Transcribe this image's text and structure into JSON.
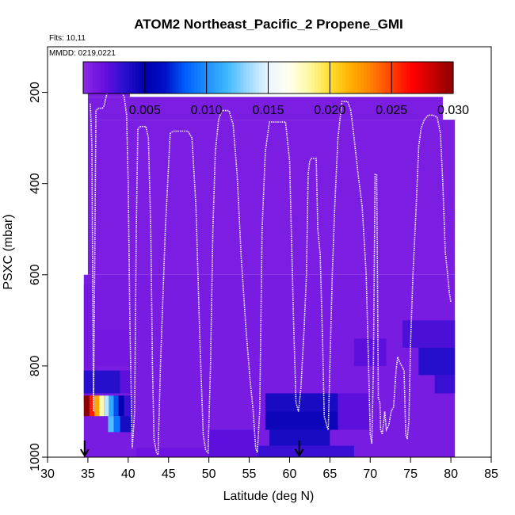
{
  "chart_data": {
    "type": "heatmap",
    "title": "ATOM2 Northeast_Pacific_2 Propene_GMI",
    "flights_label": "Flts: 10,11",
    "dates_label": "MMDD: 0219,0221",
    "xlabel": "Latitude (deg N)",
    "ylabel": "PSXC (mbar)",
    "xlim": [
      30,
      85
    ],
    "ylim": [
      1000,
      100
    ],
    "x_ticks": [
      "30",
      "35",
      "40",
      "45",
      "50",
      "55",
      "60",
      "65",
      "70",
      "75",
      "80",
      "85"
    ],
    "y_ticks": [
      "200",
      "400",
      "600",
      "800",
      "1000"
    ],
    "colorbar": {
      "range": [
        0.0,
        0.03
      ],
      "tick_labels": [
        "0.005",
        "0.010",
        "0.015",
        "0.020",
        "0.025",
        "0.030"
      ],
      "colors": [
        "#8a2be2",
        "#6a0fe0",
        "#2a10d0",
        "#0000b0",
        "#0010c8",
        "#0060ff",
        "#1e90ff",
        "#40b8ff",
        "#9ad8ff",
        "#e8f6ff",
        "#fffff0",
        "#fff8a0",
        "#ffe030",
        "#ffb000",
        "#ff8000",
        "#ff4000",
        "#ff0000",
        "#c80000",
        "#8b0000"
      ]
    },
    "arrow_latitudes": [
      34.6,
      61.2
    ],
    "background_value": 0.0008,
    "cells": [
      {
        "x0": 35.0,
        "x1": 40.2,
        "y0": 160,
        "y1": 210,
        "v": 0.0008
      },
      {
        "x0": 35.0,
        "x1": 79.0,
        "y0": 210,
        "y1": 260,
        "v": 0.0008
      },
      {
        "x0": 35.0,
        "x1": 80.5,
        "y0": 260,
        "y1": 600,
        "v": 0.0008
      },
      {
        "x0": 34.5,
        "x1": 80.5,
        "y0": 600,
        "y1": 1000,
        "v": 0.0009
      },
      {
        "x0": 34.5,
        "x1": 36.0,
        "y0": 620,
        "y1": 880,
        "v": 0.0012
      },
      {
        "x0": 36.0,
        "x1": 40.2,
        "y0": 720,
        "y1": 800,
        "v": 0.0012
      },
      {
        "x0": 34.5,
        "x1": 39.0,
        "y0": 810,
        "y1": 860,
        "v": 0.0035
      },
      {
        "x0": 39.0,
        "x1": 40.5,
        "y0": 810,
        "y1": 860,
        "v": 0.002
      },
      {
        "x0": 34.5,
        "x1": 35.2,
        "y0": 865,
        "y1": 910,
        "v": 0.03
      },
      {
        "x0": 35.2,
        "x1": 35.8,
        "y0": 865,
        "y1": 910,
        "v": 0.026
      },
      {
        "x0": 35.8,
        "x1": 36.4,
        "y0": 865,
        "y1": 910,
        "v": 0.022
      },
      {
        "x0": 36.4,
        "x1": 37.0,
        "y0": 865,
        "y1": 910,
        "v": 0.018
      },
      {
        "x0": 37.0,
        "x1": 37.6,
        "y0": 865,
        "y1": 910,
        "v": 0.014
      },
      {
        "x0": 37.6,
        "x1": 38.2,
        "y0": 865,
        "y1": 910,
        "v": 0.011
      },
      {
        "x0": 38.2,
        "x1": 38.8,
        "y0": 865,
        "y1": 910,
        "v": 0.008
      },
      {
        "x0": 38.8,
        "x1": 39.5,
        "y0": 865,
        "y1": 910,
        "v": 0.005
      },
      {
        "x0": 39.5,
        "x1": 40.5,
        "y0": 865,
        "y1": 910,
        "v": 0.003
      },
      {
        "x0": 37.5,
        "x1": 38.2,
        "y0": 910,
        "y1": 945,
        "v": 0.012
      },
      {
        "x0": 38.2,
        "x1": 39.0,
        "y0": 910,
        "y1": 945,
        "v": 0.009
      },
      {
        "x0": 39.0,
        "x1": 40.5,
        "y0": 910,
        "y1": 945,
        "v": 0.004
      },
      {
        "x0": 57.0,
        "x1": 66.0,
        "y0": 860,
        "y1": 900,
        "v": 0.004
      },
      {
        "x0": 57.0,
        "x1": 67.0,
        "y0": 900,
        "y1": 940,
        "v": 0.0045
      },
      {
        "x0": 57.5,
        "x1": 65.0,
        "y0": 940,
        "y1": 975,
        "v": 0.004
      },
      {
        "x0": 56.0,
        "x1": 68.0,
        "y0": 975,
        "y1": 1000,
        "v": 0.003
      },
      {
        "x0": 66.0,
        "x1": 70.0,
        "y0": 860,
        "y1": 940,
        "v": 0.002
      },
      {
        "x0": 74.0,
        "x1": 80.5,
        "y0": 700,
        "y1": 760,
        "v": 0.0025
      },
      {
        "x0": 76.0,
        "x1": 80.5,
        "y0": 760,
        "y1": 820,
        "v": 0.0035
      },
      {
        "x0": 78.0,
        "x1": 80.5,
        "y0": 820,
        "y1": 860,
        "v": 0.003
      },
      {
        "x0": 68.0,
        "x1": 72.0,
        "y0": 740,
        "y1": 800,
        "v": 0.002
      },
      {
        "x0": 41.0,
        "x1": 50.0,
        "y0": 980,
        "y1": 1000,
        "v": 0.0015
      },
      {
        "x0": 50.0,
        "x1": 56.0,
        "y0": 940,
        "y1": 1000,
        "v": 0.002
      }
    ],
    "track": {
      "lat": [
        35.3,
        35.5,
        35.7,
        36.0,
        36.3,
        36.5,
        36.8,
        37.0,
        37.4,
        38.0,
        38.6,
        39.2,
        39.5,
        39.8,
        40.0,
        40.2,
        40.5,
        40.8,
        41.0,
        41.2,
        41.5,
        41.8,
        42.2,
        42.5,
        42.8,
        43.0,
        43.2,
        43.5,
        43.7,
        44.0,
        44.6,
        45.2,
        45.6,
        46.0,
        46.5,
        46.9,
        47.4,
        47.9,
        48.4,
        48.9,
        49.3,
        49.6,
        49.9,
        50.2,
        50.5,
        50.8,
        51.2,
        51.6,
        52.0,
        52.5,
        53.0,
        53.5,
        54.0,
        54.6,
        55.1,
        55.5,
        55.8,
        56.0,
        56.3,
        56.6,
        57.0,
        57.5,
        58.0,
        58.5,
        59.0,
        59.5,
        60.0,
        60.5,
        60.8,
        61.1,
        61.4,
        61.8,
        62.1,
        62.3,
        62.5,
        62.7,
        63.0,
        63.3,
        63.5,
        63.8,
        64.1,
        64.3,
        64.6,
        64.8,
        65.0,
        65.3,
        65.6,
        66.0,
        66.5,
        66.9,
        67.2,
        67.6,
        68.0,
        68.5,
        69.0,
        69.5,
        69.8,
        70.0,
        70.2,
        70.4,
        70.6,
        70.8,
        70.9,
        71.0,
        71.2,
        71.3,
        71.5,
        71.8,
        72.0,
        72.3,
        72.6,
        72.9,
        73.2,
        73.4,
        73.6,
        73.9,
        74.2,
        74.4,
        74.6,
        74.8,
        75.0,
        75.3,
        75.7,
        76.0,
        76.3,
        76.7,
        77.2,
        77.8,
        78.3,
        78.7,
        79.0,
        79.3,
        79.6,
        79.8,
        80.0
      ],
      "p": [
        225,
        320,
        900,
        240,
        235,
        235,
        235,
        230,
        200,
        200,
        200,
        200,
        210,
        250,
        400,
        700,
        980,
        900,
        500,
        280,
        275,
        275,
        275,
        300,
        500,
        800,
        960,
        990,
        995,
        800,
        500,
        290,
        285,
        285,
        285,
        285,
        285,
        300,
        450,
        750,
        950,
        985,
        990,
        800,
        500,
        330,
        260,
        240,
        240,
        240,
        270,
        380,
        560,
        720,
        830,
        900,
        980,
        990,
        900,
        500,
        330,
        265,
        265,
        265,
        265,
        265,
        350,
        700,
        880,
        900,
        850,
        720,
        600,
        380,
        350,
        345,
        345,
        345,
        500,
        555,
        750,
        910,
        930,
        940,
        800,
        600,
        450,
        300,
        220,
        220,
        220,
        240,
        300,
        380,
        450,
        600,
        800,
        950,
        970,
        800,
        380,
        380,
        600,
        870,
        880,
        940,
        950,
        900,
        940,
        930,
        900,
        890,
        810,
        780,
        790,
        800,
        810,
        950,
        960,
        920,
        750,
        600,
        450,
        320,
        280,
        260,
        250,
        250,
        255,
        290,
        400,
        550,
        600,
        640,
        660,
        650
      ]
    }
  }
}
